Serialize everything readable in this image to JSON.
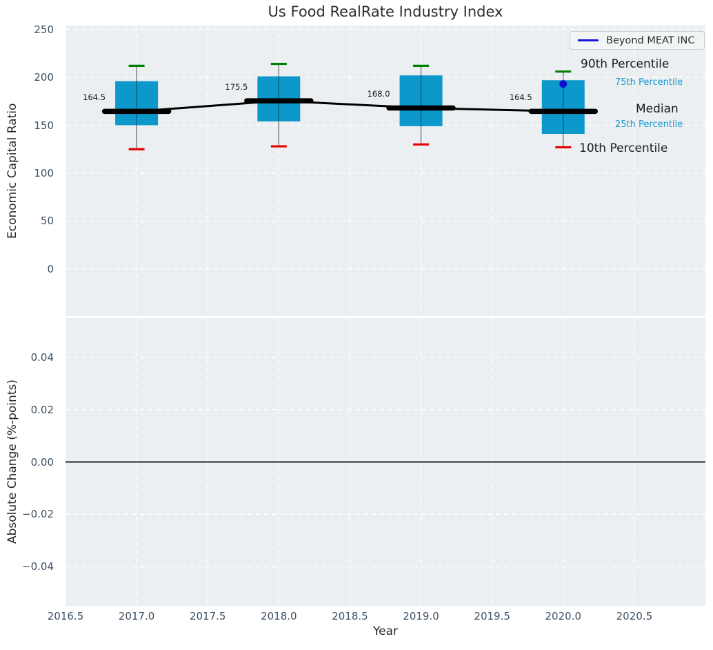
{
  "figure": {
    "title": "Us Food RealRate Industry Index"
  },
  "top_plot": {
    "ylabel": "Economic Capital Ratio",
    "legend_label": "Beyond MEAT INC",
    "annotations": {
      "p90": "90th Percentile",
      "p75": "75th Percentile",
      "median": "Median",
      "p25": "25th Percentile",
      "p10": "10th Percentile"
    }
  },
  "bottom_plot": {
    "ylabel": "Absolute Change (%-points)"
  },
  "xlabel": "Year",
  "colors": {
    "box_fill": "#0d98cb",
    "median_line": "#000000",
    "whisker": "#606060",
    "cap_top": "#008000",
    "cap_bottom": "#e60000",
    "series_line": "#1414dc",
    "series_point": "#1010d2",
    "plot_bg": "#eceff1",
    "grid": "#ffffff",
    "tick_text": "#3e5063",
    "percentile_text": "#1a9bce",
    "zero_line": "#000000"
  },
  "chart_data": [
    {
      "type": "boxplot",
      "title": "Us Food RealRate Industry Index",
      "xlabel": "Year",
      "ylabel": "Economic Capital Ratio",
      "xlim": [
        2016.5,
        2021.0
      ],
      "ylim": [
        -49,
        254
      ],
      "grid": true,
      "legend": {
        "label": "Beyond MEAT INC",
        "position": "upper right"
      },
      "xticks": [
        {
          "v": 2016.5,
          "label": "2016.5"
        },
        {
          "v": 2017.0,
          "label": "2017.0"
        },
        {
          "v": 2017.5,
          "label": "2017.5"
        },
        {
          "v": 2018.0,
          "label": "2018.0"
        },
        {
          "v": 2018.5,
          "label": "2018.5"
        },
        {
          "v": 2019.0,
          "label": "2019.0"
        },
        {
          "v": 2019.5,
          "label": "2019.5"
        },
        {
          "v": 2020.0,
          "label": "2020.0"
        },
        {
          "v": 2020.5,
          "label": "2020.5"
        }
      ],
      "yticks": [
        {
          "v": 0,
          "label": "0"
        },
        {
          "v": 50,
          "label": "50"
        },
        {
          "v": 100,
          "label": "100"
        },
        {
          "v": 150,
          "label": "150"
        },
        {
          "v": 200,
          "label": "200"
        },
        {
          "v": 250,
          "label": "250"
        }
      ],
      "boxes": [
        {
          "year": 2017,
          "p10": 125,
          "p25": 150,
          "median": 164.5,
          "p75": 196,
          "p90": 212,
          "median_label": "164.5"
        },
        {
          "year": 2018,
          "p10": 128,
          "p25": 154,
          "median": 175.5,
          "p75": 201,
          "p90": 214,
          "median_label": "175.5"
        },
        {
          "year": 2019,
          "p10": 130,
          "p25": 149,
          "median": 168.0,
          "p75": 202,
          "p90": 212,
          "median_label": "168.0"
        },
        {
          "year": 2020,
          "p10": 127,
          "p25": 141,
          "median": 164.5,
          "p75": 197,
          "p90": 206,
          "median_label": "164.5"
        }
      ],
      "series": [
        {
          "name": "Beyond MEAT INC",
          "points": [
            {
              "x": 2020,
              "y": 193
            }
          ]
        }
      ]
    },
    {
      "type": "line",
      "xlabel": "Year",
      "ylabel": "Absolute Change (%-points)",
      "xlim": [
        2016.5,
        2021.0
      ],
      "ylim": [
        -0.055,
        0.055
      ],
      "grid": true,
      "yticks": [
        {
          "v": 0.04,
          "label": "0.04"
        },
        {
          "v": 0.02,
          "label": "0.02"
        },
        {
          "v": 0,
          "label": "0.00"
        },
        {
          "v": -0.02,
          "label": "−0.02"
        },
        {
          "v": -0.04,
          "label": "−0.04"
        }
      ],
      "zero_line": 0
    }
  ]
}
